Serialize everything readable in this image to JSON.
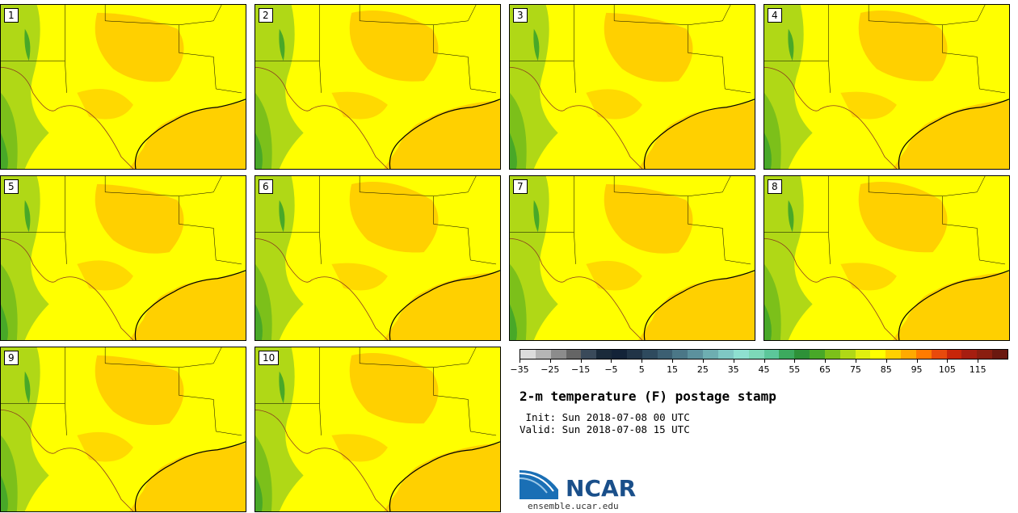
{
  "panels": [
    {
      "label": "1"
    },
    {
      "label": "2"
    },
    {
      "label": "3"
    },
    {
      "label": "4"
    },
    {
      "label": "5"
    },
    {
      "label": "6"
    },
    {
      "label": "7"
    },
    {
      "label": "8"
    },
    {
      "label": "9"
    },
    {
      "label": "10"
    }
  ],
  "colorbar": {
    "colors": [
      "#dcdcdc",
      "#b5b5b5",
      "#8c8c8c",
      "#656565",
      "#3a4a5a",
      "#1a2a3a",
      "#132338",
      "#213447",
      "#2e4a5e",
      "#3c5f72",
      "#4b7787",
      "#5c919d",
      "#6eaeb1",
      "#7fc8c4",
      "#8ee0d0",
      "#7dd8b8",
      "#5cc79a",
      "#3caa5e",
      "#2e9138",
      "#48a828",
      "#7cc01a",
      "#b0d816",
      "#e0ef10",
      "#ffff00",
      "#ffd000",
      "#ffaa00",
      "#ff7b00",
      "#e84a0c",
      "#c8260a",
      "#a61e10",
      "#8a1e10",
      "#6a1810"
    ],
    "tick_labels": [
      "−35",
      "−25",
      "−15",
      "−5",
      "5",
      "15",
      "25",
      "35",
      "45",
      "55",
      "65",
      "75",
      "85",
      "95",
      "105",
      "115"
    ]
  },
  "title": "2-m temperature (F) postage stamp",
  "init_line": " Init: Sun 2018-07-08 00 UTC",
  "valid_line": "Valid: Sun 2018-07-08 15 UTC",
  "logo": {
    "text": "NCAR",
    "url": "ensemble.ucar.edu",
    "brand_color": "#1a4f8a"
  },
  "map_colors": {
    "hot": "#ffd000",
    "warm": "#ffff00",
    "mild": "#b0d816",
    "cool": "#7cc01a",
    "cooler": "#48a828",
    "water": "#ffd000",
    "lines": "#000000"
  }
}
